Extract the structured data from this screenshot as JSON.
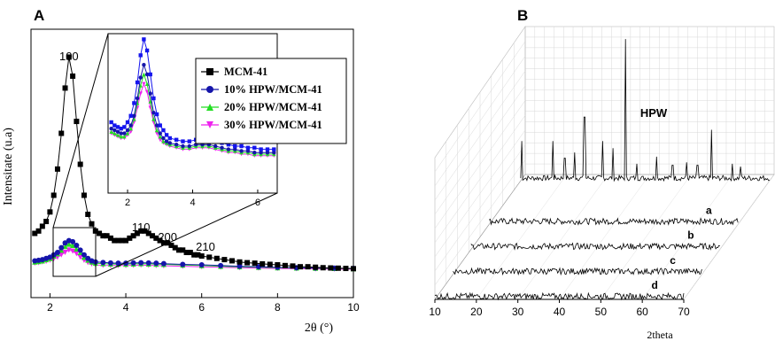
{
  "chart_data": [
    {
      "panel_label": "A",
      "type": "line",
      "ylabel": "Intensitate (u.a)",
      "xlabel": "2θ (°)",
      "xlim": [
        1.5,
        10
      ],
      "xticks": [
        "2",
        "4",
        "6",
        "8",
        "10"
      ],
      "legend_position": "top-right",
      "peak_labels": [
        {
          "text": "100",
          "x": 2.5
        },
        {
          "text": "110",
          "x": 4.4
        },
        {
          "text": "200",
          "x": 5.1
        },
        {
          "text": "210",
          "x": 6.1
        }
      ],
      "series": [
        {
          "name": "MCM-41",
          "color": "#000000",
          "marker": "square",
          "x": [
            1.6,
            1.7,
            1.8,
            1.9,
            2.0,
            2.1,
            2.2,
            2.3,
            2.4,
            2.5,
            2.6,
            2.7,
            2.8,
            2.9,
            3.0,
            3.1,
            3.2,
            3.3,
            3.4,
            3.5,
            3.6,
            3.7,
            3.8,
            3.9,
            4.0,
            4.1,
            4.2,
            4.3,
            4.4,
            4.5,
            4.6,
            4.7,
            4.8,
            4.9,
            5.0,
            5.1,
            5.2,
            5.3,
            5.4,
            5.5,
            5.6,
            5.7,
            5.8,
            5.9,
            6.0,
            6.2,
            6.4,
            6.6,
            6.8,
            7.0,
            7.2,
            7.4,
            7.6,
            7.8,
            8.0,
            8.2,
            8.4,
            8.6,
            8.8,
            9.0,
            9.2,
            9.4,
            9.6,
            9.8,
            10.0
          ],
          "y": [
            0.21,
            0.22,
            0.24,
            0.26,
            0.3,
            0.37,
            0.48,
            0.63,
            0.82,
            0.95,
            0.87,
            0.68,
            0.5,
            0.37,
            0.29,
            0.25,
            0.22,
            0.21,
            0.2,
            0.2,
            0.19,
            0.18,
            0.18,
            0.18,
            0.18,
            0.19,
            0.2,
            0.21,
            0.22,
            0.22,
            0.21,
            0.2,
            0.19,
            0.18,
            0.17,
            0.17,
            0.16,
            0.15,
            0.14,
            0.14,
            0.13,
            0.13,
            0.12,
            0.12,
            0.115,
            0.11,
            0.105,
            0.1,
            0.095,
            0.09,
            0.087,
            0.085,
            0.082,
            0.08,
            0.078,
            0.075,
            0.073,
            0.07,
            0.07,
            0.068,
            0.066,
            0.065,
            0.064,
            0.063,
            0.062
          ]
        },
        {
          "name": "10% HPW/MCM-41",
          "color": "#1515aa",
          "marker": "circle",
          "x": [
            1.6,
            1.7,
            1.8,
            1.9,
            2.0,
            2.1,
            2.2,
            2.3,
            2.4,
            2.5,
            2.6,
            2.7,
            2.8,
            2.9,
            3.0,
            3.1,
            3.2,
            3.4,
            3.6,
            3.8,
            4.0,
            4.2,
            4.4,
            4.6,
            4.8,
            5.0,
            5.5,
            6.0,
            6.5,
            7.0,
            7.5,
            8.0,
            8.5,
            9.0,
            9.5,
            10.0
          ],
          "y": [
            0.095,
            0.097,
            0.1,
            0.105,
            0.11,
            0.12,
            0.13,
            0.15,
            0.17,
            0.18,
            0.175,
            0.16,
            0.14,
            0.12,
            0.105,
            0.095,
            0.09,
            0.088,
            0.086,
            0.085,
            0.085,
            0.086,
            0.087,
            0.086,
            0.085,
            0.083,
            0.08,
            0.078,
            0.075,
            0.072,
            0.07,
            0.068,
            0.066,
            0.065,
            0.064,
            0.063
          ]
        },
        {
          "name": "20% HPW/MCM-41",
          "color": "#22dd22",
          "marker": "triangle",
          "x": [
            1.6,
            1.7,
            1.8,
            1.9,
            2.0,
            2.1,
            2.2,
            2.3,
            2.4,
            2.5,
            2.6,
            2.7,
            2.8,
            2.9,
            3.0,
            3.1,
            3.2,
            3.4,
            3.6,
            3.8,
            4.0,
            4.2,
            4.4,
            4.6,
            4.8,
            5.0,
            5.5,
            6.0,
            6.5,
            7.0,
            7.5,
            8.0,
            8.5,
            9.0,
            9.5,
            10.0
          ],
          "y": [
            0.09,
            0.092,
            0.095,
            0.1,
            0.105,
            0.115,
            0.125,
            0.14,
            0.155,
            0.165,
            0.16,
            0.145,
            0.13,
            0.11,
            0.098,
            0.09,
            0.085,
            0.083,
            0.082,
            0.081,
            0.081,
            0.082,
            0.083,
            0.082,
            0.081,
            0.08,
            0.077,
            0.075,
            0.072,
            0.07,
            0.068,
            0.066,
            0.065,
            0.064,
            0.063,
            0.062
          ]
        },
        {
          "name": "30% HPW/MCM-41",
          "color": "#ee22ee",
          "marker": "triangle-down",
          "x": [
            1.6,
            1.7,
            1.8,
            1.9,
            2.0,
            2.1,
            2.2,
            2.3,
            2.4,
            2.5,
            2.6,
            2.7,
            2.8,
            2.9,
            3.0,
            3.1,
            3.2,
            3.4,
            3.6,
            3.8,
            4.0,
            4.2,
            4.4,
            4.6,
            4.8,
            5.0,
            5.5,
            6.0,
            6.5,
            7.0,
            7.5,
            8.0,
            8.5,
            9.0,
            9.5,
            10.0
          ],
          "y": [
            0.085,
            0.087,
            0.09,
            0.093,
            0.097,
            0.103,
            0.11,
            0.12,
            0.13,
            0.14,
            0.135,
            0.125,
            0.11,
            0.097,
            0.088,
            0.082,
            0.078,
            0.076,
            0.075,
            0.075,
            0.075,
            0.076,
            0.077,
            0.076,
            0.075,
            0.074,
            0.072,
            0.07,
            0.068,
            0.066,
            0.064,
            0.063,
            0.062,
            0.061,
            0.06,
            0.06
          ]
        }
      ],
      "inset": {
        "type": "line",
        "xlim": [
          1.4,
          6.6
        ],
        "xticks": [
          "2",
          "4",
          "6"
        ],
        "series": [
          {
            "name": "MCM-41",
            "color": "#1515ee",
            "marker": "square",
            "x": [
              1.5,
              1.6,
              1.7,
              1.8,
              1.9,
              2.0,
              2.1,
              2.2,
              2.3,
              2.4,
              2.5,
              2.6,
              2.7,
              2.8,
              2.9,
              3.0,
              3.1,
              3.2,
              3.3,
              3.5,
              3.7,
              3.9,
              4.1,
              4.3,
              4.5,
              4.7,
              4.9,
              5.1,
              5.3,
              5.5,
              5.7,
              5.9,
              6.1,
              6.3,
              6.5
            ],
            "y": [
              0.4,
              0.38,
              0.37,
              0.36,
              0.37,
              0.4,
              0.44,
              0.52,
              0.65,
              0.82,
              0.92,
              0.85,
              0.7,
              0.55,
              0.45,
              0.38,
              0.35,
              0.32,
              0.3,
              0.29,
              0.28,
              0.28,
              0.29,
              0.3,
              0.29,
              0.28,
              0.27,
              0.26,
              0.25,
              0.25,
              0.24,
              0.24,
              0.23,
              0.23,
              0.23
            ]
          },
          {
            "name": "10% HPW/MCM-41",
            "color": "#1515aa",
            "marker": "circle",
            "x": [
              1.5,
              1.6,
              1.7,
              1.8,
              1.9,
              2.0,
              2.1,
              2.2,
              2.3,
              2.4,
              2.5,
              2.6,
              2.7,
              2.8,
              2.9,
              3.0,
              3.1,
              3.2,
              3.3,
              3.5,
              3.7,
              3.9,
              4.1,
              4.3,
              4.5,
              4.7,
              4.9,
              5.1,
              5.3,
              5.5,
              5.7,
              5.9,
              6.1,
              6.3,
              6.5
            ],
            "y": [
              0.36,
              0.35,
              0.34,
              0.33,
              0.33,
              0.35,
              0.38,
              0.44,
              0.55,
              0.68,
              0.76,
              0.7,
              0.58,
              0.46,
              0.38,
              0.33,
              0.3,
              0.28,
              0.27,
              0.26,
              0.25,
              0.25,
              0.26,
              0.26,
              0.26,
              0.25,
              0.24,
              0.23,
              0.23,
              0.22,
              0.22,
              0.21,
              0.21,
              0.21,
              0.21
            ]
          },
          {
            "name": "20% HPW/MCM-41",
            "color": "#22dd22",
            "marker": "triangle",
            "x": [
              1.5,
              1.6,
              1.7,
              1.8,
              1.9,
              2.0,
              2.1,
              2.2,
              2.3,
              2.4,
              2.5,
              2.6,
              2.7,
              2.8,
              2.9,
              3.0,
              3.1,
              3.2,
              3.3,
              3.5,
              3.7,
              3.9,
              4.1,
              4.3,
              4.5,
              4.7,
              4.9,
              5.1,
              5.3,
              5.5,
              5.7,
              5.9,
              6.1,
              6.3,
              6.5
            ],
            "y": [
              0.34,
              0.33,
              0.32,
              0.31,
              0.31,
              0.33,
              0.36,
              0.42,
              0.52,
              0.63,
              0.7,
              0.64,
              0.53,
              0.42,
              0.35,
              0.31,
              0.28,
              0.27,
              0.26,
              0.25,
              0.24,
              0.24,
              0.25,
              0.25,
              0.25,
              0.24,
              0.23,
              0.22,
              0.22,
              0.21,
              0.21,
              0.2,
              0.2,
              0.2,
              0.2
            ]
          },
          {
            "name": "30% HPW/MCM-41",
            "color": "#ee22ee",
            "marker": "triangle-down",
            "x": [
              1.5,
              1.6,
              1.7,
              1.8,
              1.9,
              2.0,
              2.1,
              2.2,
              2.3,
              2.4,
              2.5,
              2.6,
              2.7,
              2.8,
              2.9,
              3.0,
              3.1,
              3.2,
              3.3,
              3.5,
              3.7,
              3.9,
              4.1,
              4.3,
              4.5,
              4.7,
              4.9,
              5.1,
              5.3,
              5.5,
              5.7,
              5.9,
              6.1,
              6.3,
              6.5
            ],
            "y": [
              0.33,
              0.32,
              0.31,
              0.3,
              0.3,
              0.32,
              0.34,
              0.4,
              0.49,
              0.58,
              0.64,
              0.59,
              0.49,
              0.4,
              0.33,
              0.29,
              0.27,
              0.26,
              0.25,
              0.24,
              0.23,
              0.23,
              0.24,
              0.24,
              0.24,
              0.23,
              0.22,
              0.21,
              0.21,
              0.2,
              0.2,
              0.19,
              0.19,
              0.19,
              0.19
            ]
          }
        ]
      }
    },
    {
      "panel_label": "B",
      "type": "line",
      "xlabel": "2theta",
      "xlim": [
        10,
        70
      ],
      "xticks": [
        "10",
        "20",
        "30",
        "40",
        "50",
        "60",
        "70"
      ],
      "series": [
        {
          "name": "HPW",
          "color": "#000000",
          "peaks": [
            {
              "x": 10.3,
              "h": 0.28
            },
            {
              "x": 17.8,
              "h": 0.28
            },
            {
              "x": 20.6,
              "h": 0.16
            },
            {
              "x": 23.0,
              "h": 0.2
            },
            {
              "x": 25.4,
              "h": 0.45
            },
            {
              "x": 29.8,
              "h": 0.28
            },
            {
              "x": 32.2,
              "h": 0.23
            },
            {
              "x": 35.3,
              "h": 1.0
            },
            {
              "x": 38.0,
              "h": 0.12
            },
            {
              "x": 42.7,
              "h": 0.17
            },
            {
              "x": 46.6,
              "h": 0.11
            },
            {
              "x": 50.0,
              "h": 0.13
            },
            {
              "x": 52.6,
              "h": 0.11
            },
            {
              "x": 56.0,
              "h": 0.36
            },
            {
              "x": 61.0,
              "h": 0.12
            },
            {
              "x": 63.0,
              "h": 0.1
            }
          ]
        },
        {
          "name": "a",
          "color": "#000000"
        },
        {
          "name": "b",
          "color": "#000000"
        },
        {
          "name": "c",
          "color": "#000000"
        },
        {
          "name": "d",
          "color": "#000000"
        }
      ]
    }
  ]
}
